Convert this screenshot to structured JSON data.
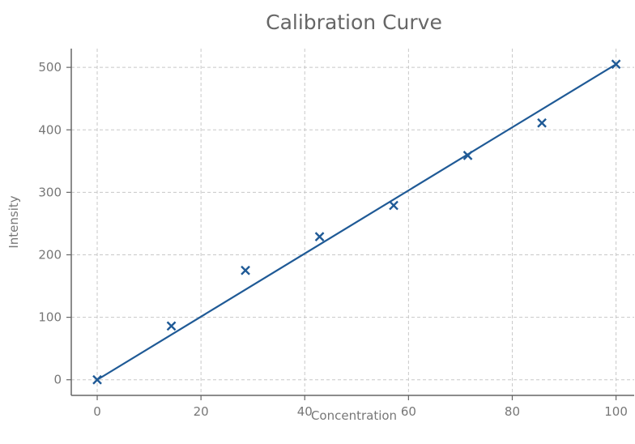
{
  "chart_data": {
    "type": "scatter",
    "title": "Calibration Curve",
    "xlabel": "Concentration",
    "ylabel": "Intensity",
    "xlim": [
      -5,
      103.5
    ],
    "ylim": [
      -25,
      530
    ],
    "xticks": [
      0,
      20,
      40,
      60,
      80,
      100
    ],
    "yticks": [
      0,
      100,
      200,
      300,
      400,
      500
    ],
    "grid": true,
    "color": "#1f5a96",
    "points": {
      "x": [
        0,
        14.29,
        28.57,
        42.86,
        57.14,
        71.43,
        85.71,
        100
      ],
      "y": [
        0,
        86,
        175,
        229,
        279,
        359,
        411,
        505
      ]
    },
    "fit_line": {
      "x": [
        0,
        100
      ],
      "y": [
        0,
        505
      ]
    }
  }
}
